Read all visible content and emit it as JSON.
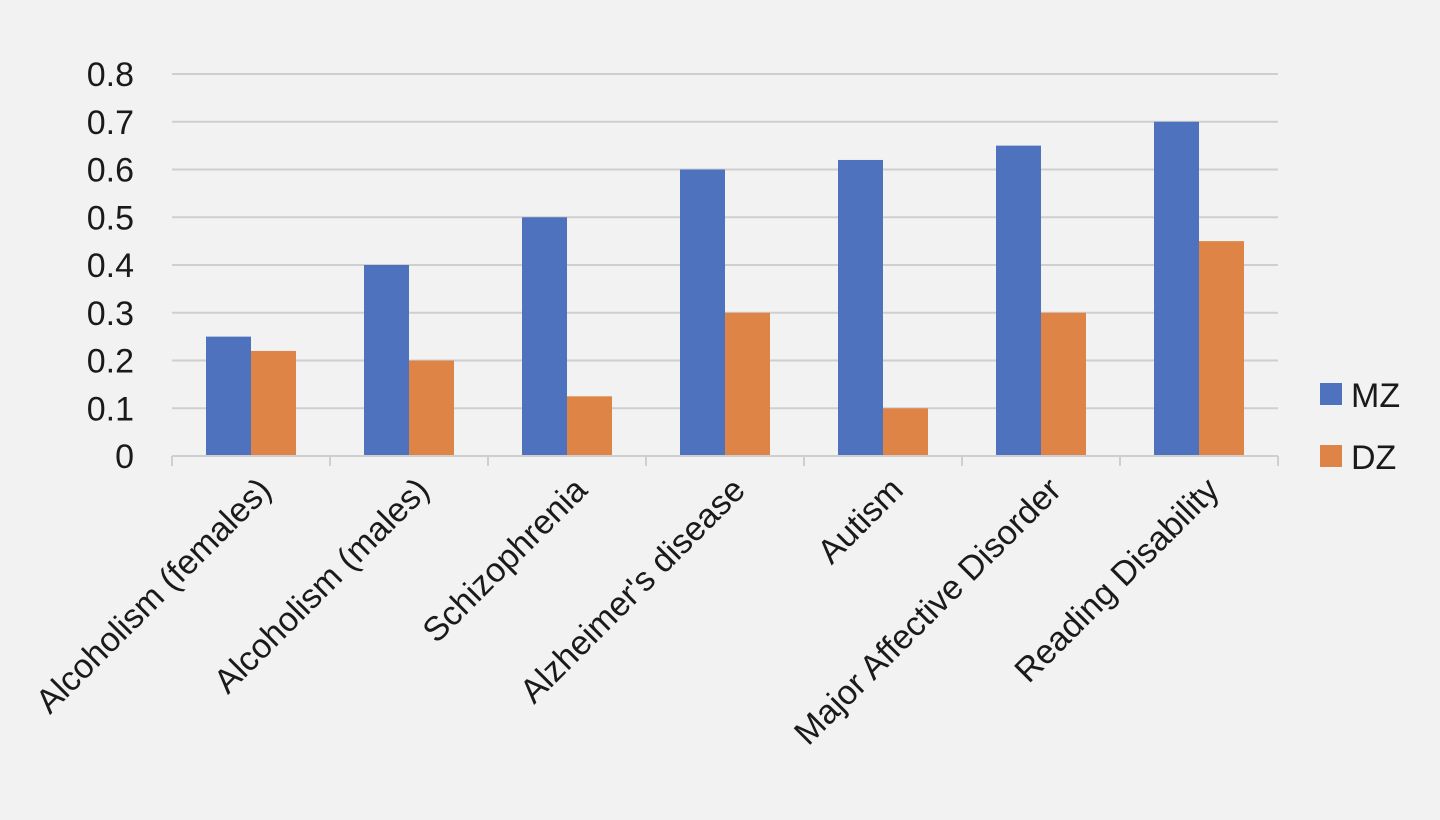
{
  "chart_data": {
    "type": "bar",
    "title": "",
    "xlabel": "",
    "ylabel": "",
    "categories": [
      "Alcoholism (females)",
      "Alcoholism (males)",
      "Schizophrenia",
      "Alzheimer's disease",
      "Autism",
      "Major Affective Disorder",
      "Reading Disability"
    ],
    "series": [
      {
        "name": "MZ",
        "color": "#4f72be",
        "values": [
          0.25,
          0.4,
          0.5,
          0.6,
          0.62,
          0.65,
          0.7
        ]
      },
      {
        "name": "DZ",
        "color": "#dd8446",
        "values": [
          0.22,
          0.2,
          0.125,
          0.3,
          0.1,
          0.3,
          0.45
        ]
      }
    ],
    "ylim": [
      0,
      0.8
    ],
    "yticks": [
      "0",
      "0.1",
      "0.2",
      "0.3",
      "0.4",
      "0.5",
      "0.6",
      "0.7",
      "0.8"
    ],
    "grid": true,
    "legend_position": "right"
  }
}
